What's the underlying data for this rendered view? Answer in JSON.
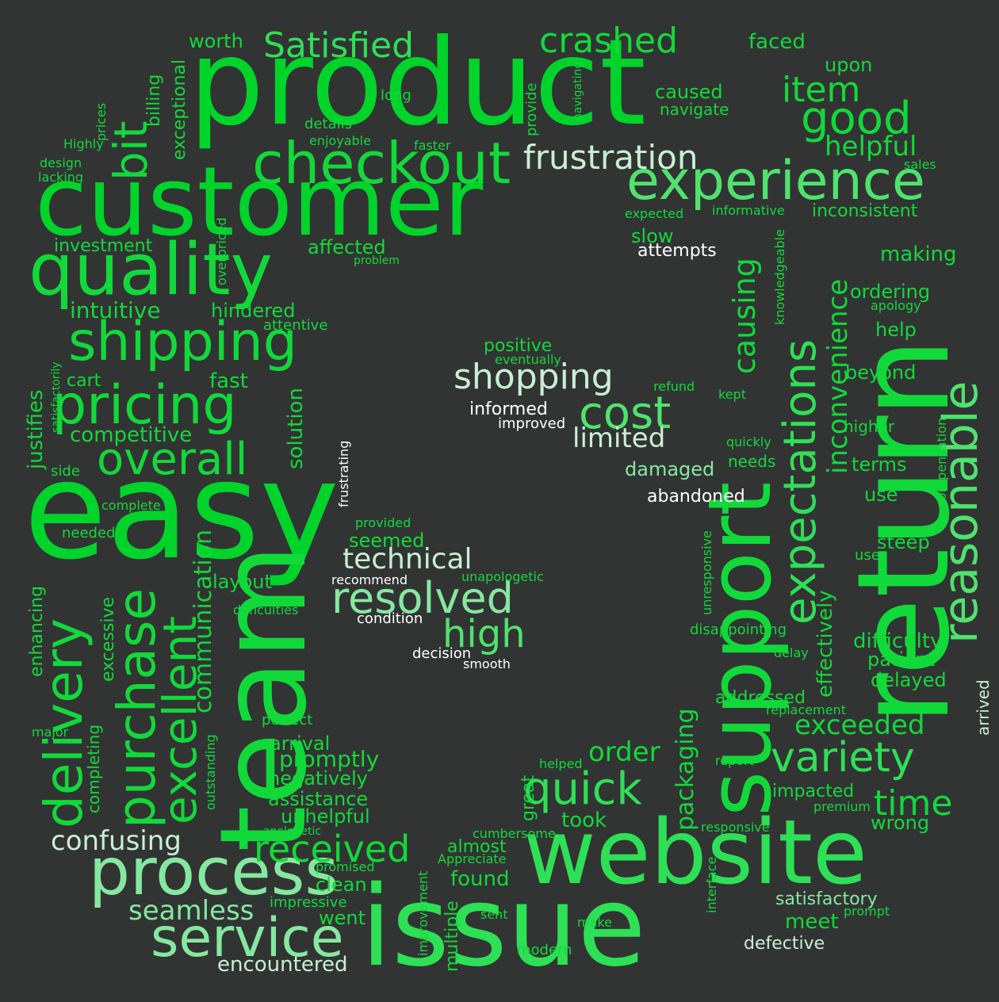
{
  "palette": {
    "background": "#323434",
    "greens": [
      "#00d42b",
      "#12d93a",
      "#2ee055",
      "#4fe36e",
      "#86e8a0",
      "#c8f0d2",
      "#ffffff"
    ]
  },
  "words": [
    {
      "text": "product",
      "color": "#00d42b"
    },
    {
      "text": "customer",
      "color": "#00d42b"
    },
    {
      "text": "easy",
      "color": "#00d42b"
    },
    {
      "text": "return",
      "color": "#12d93a"
    },
    {
      "text": "issue",
      "color": "#2ee055"
    },
    {
      "text": "website",
      "color": "#2ee055"
    },
    {
      "text": "team",
      "color": "#12d93a"
    },
    {
      "text": "support",
      "color": "#12d93a"
    },
    {
      "text": "quality",
      "color": "#12d93a"
    },
    {
      "text": "checkout",
      "color": "#12d93a"
    },
    {
      "text": "experience",
      "color": "#4fe36e"
    },
    {
      "text": "process",
      "color": "#86e8a0"
    },
    {
      "text": "service",
      "color": "#86e8a0"
    },
    {
      "text": "shipping",
      "color": "#12d93a"
    },
    {
      "text": "pricing",
      "color": "#12d93a"
    },
    {
      "text": "delivery",
      "color": "#12d93a"
    },
    {
      "text": "purchase",
      "color": "#12d93a"
    },
    {
      "text": "excellent",
      "color": "#12d93a"
    },
    {
      "text": "reasonable",
      "color": "#4fe36e"
    },
    {
      "text": "expectations",
      "color": "#2ee055"
    },
    {
      "text": "overall",
      "color": "#12d93a"
    },
    {
      "text": "crashed",
      "color": "#12d93a"
    },
    {
      "text": "good",
      "color": "#12d93a"
    },
    {
      "text": "bit",
      "color": "#12d93a"
    },
    {
      "text": "Satisfied",
      "color": "#2ee055"
    },
    {
      "text": "frustration",
      "color": "#c8f0d2"
    },
    {
      "text": "item",
      "color": "#12d93a"
    },
    {
      "text": "variety",
      "color": "#2ee055"
    },
    {
      "text": "quick",
      "color": "#2ee055"
    },
    {
      "text": "cost",
      "color": "#4fe36e"
    },
    {
      "text": "shopping",
      "color": "#c8f0d2"
    },
    {
      "text": "resolved",
      "color": "#86e8a0"
    },
    {
      "text": "high",
      "color": "#4fe36e"
    },
    {
      "text": "received",
      "color": "#12d93a"
    },
    {
      "text": "causing",
      "color": "#12d93a"
    },
    {
      "text": "inconvenience",
      "color": "#12d93a"
    },
    {
      "text": "time",
      "color": "#12d93a"
    },
    {
      "text": "technical",
      "color": "#c8f0d2"
    },
    {
      "text": "limited",
      "color": "#c8f0d2"
    },
    {
      "text": "confusing",
      "color": "#c8f0d2"
    },
    {
      "text": "communication",
      "color": "#12d93a"
    },
    {
      "text": "packaging",
      "color": "#12d93a"
    },
    {
      "text": "exceeded",
      "color": "#12d93a"
    },
    {
      "text": "helpful",
      "color": "#12d93a"
    },
    {
      "text": "order",
      "color": "#12d93a"
    },
    {
      "text": "seamless",
      "color": "#86e8a0"
    },
    {
      "text": "encountered",
      "color": "#c8f0d2"
    },
    {
      "text": "intuitive",
      "color": "#12d93a"
    },
    {
      "text": "competitive",
      "color": "#12d93a"
    },
    {
      "text": "solution",
      "color": "#12d93a"
    },
    {
      "text": "effectively",
      "color": "#12d93a"
    },
    {
      "text": "justifies",
      "color": "#12d93a"
    },
    {
      "text": "enhancing",
      "color": "#12d93a"
    },
    {
      "text": "excessive",
      "color": "#12d93a"
    },
    {
      "text": "completing",
      "color": "#12d93a"
    },
    {
      "text": "exceptional",
      "color": "#12d93a"
    },
    {
      "text": "billing",
      "color": "#12d93a"
    },
    {
      "text": "worth",
      "color": "#12d93a"
    },
    {
      "text": "faced",
      "color": "#12d93a"
    },
    {
      "text": "upon",
      "color": "#12d93a"
    },
    {
      "text": "caused",
      "color": "#12d93a"
    },
    {
      "text": "navigate",
      "color": "#12d93a"
    },
    {
      "text": "investment",
      "color": "#12d93a"
    },
    {
      "text": "affected",
      "color": "#12d93a"
    },
    {
      "text": "hindered",
      "color": "#12d93a"
    },
    {
      "text": "attentive",
      "color": "#12d93a"
    },
    {
      "text": "cart",
      "color": "#12d93a"
    },
    {
      "text": "fast",
      "color": "#12d93a"
    },
    {
      "text": "inconsistent",
      "color": "#12d93a"
    },
    {
      "text": "making",
      "color": "#12d93a"
    },
    {
      "text": "ordering",
      "color": "#12d93a"
    },
    {
      "text": "help",
      "color": "#12d93a"
    },
    {
      "text": "beyond",
      "color": "#12d93a"
    },
    {
      "text": "higher",
      "color": "#12d93a"
    },
    {
      "text": "terms",
      "color": "#12d93a"
    },
    {
      "text": "use",
      "color": "#12d93a"
    },
    {
      "text": "steep",
      "color": "#12d93a"
    },
    {
      "text": "user",
      "color": "#12d93a"
    },
    {
      "text": "difficulty",
      "color": "#12d93a"
    },
    {
      "text": "patient",
      "color": "#12d93a"
    },
    {
      "text": "delayed",
      "color": "#12d93a"
    },
    {
      "text": "arrived",
      "color": "#c8f0d2"
    },
    {
      "text": "slow",
      "color": "#12d93a"
    },
    {
      "text": "attempts",
      "color": "#ffffff"
    },
    {
      "text": "damaged",
      "color": "#86e8a0"
    },
    {
      "text": "abandoned",
      "color": "#ffffff"
    },
    {
      "text": "informed",
      "color": "#ffffff"
    },
    {
      "text": "improved",
      "color": "#ffffff"
    },
    {
      "text": "positive",
      "color": "#12d93a"
    },
    {
      "text": "eventually",
      "color": "#12d93a"
    },
    {
      "text": "condition",
      "color": "#ffffff"
    },
    {
      "text": "decision",
      "color": "#ffffff"
    },
    {
      "text": "smooth",
      "color": "#ffffff"
    },
    {
      "text": "recommend",
      "color": "#ffffff"
    },
    {
      "text": "unapologetic",
      "color": "#12d93a"
    },
    {
      "text": "seemed",
      "color": "#12d93a"
    },
    {
      "text": "provided",
      "color": "#12d93a"
    },
    {
      "text": "layout",
      "color": "#12d93a"
    },
    {
      "text": "difficulties",
      "color": "#12d93a"
    },
    {
      "text": "frustrating",
      "color": "#ffffff"
    },
    {
      "text": "satisfactorily",
      "color": "#12d93a"
    },
    {
      "text": "side",
      "color": "#12d93a"
    },
    {
      "text": "complete",
      "color": "#12d93a"
    },
    {
      "text": "needed",
      "color": "#12d93a"
    },
    {
      "text": "major",
      "color": "#12d93a"
    },
    {
      "text": "perfect",
      "color": "#12d93a"
    },
    {
      "text": "arrival",
      "color": "#12d93a"
    },
    {
      "text": "promptly",
      "color": "#12d93a"
    },
    {
      "text": "negatively",
      "color": "#12d93a"
    },
    {
      "text": "assistance",
      "color": "#12d93a"
    },
    {
      "text": "unhelpful",
      "color": "#12d93a"
    },
    {
      "text": "apologetic",
      "color": "#12d93a"
    },
    {
      "text": "outstanding",
      "color": "#12d93a"
    },
    {
      "text": "almost",
      "color": "#12d93a"
    },
    {
      "text": "found",
      "color": "#12d93a"
    },
    {
      "text": "Appreciate",
      "color": "#12d93a"
    },
    {
      "text": "promised",
      "color": "#12d93a"
    },
    {
      "text": "clean",
      "color": "#12d93a"
    },
    {
      "text": "impressive",
      "color": "#12d93a"
    },
    {
      "text": "went",
      "color": "#12d93a"
    },
    {
      "text": "cumbersome",
      "color": "#12d93a"
    },
    {
      "text": "took",
      "color": "#12d93a"
    },
    {
      "text": "great",
      "color": "#12d93a"
    },
    {
      "text": "helped",
      "color": "#12d93a"
    },
    {
      "text": "multiple",
      "color": "#12d93a"
    },
    {
      "text": "improvement",
      "color": "#12d93a"
    },
    {
      "text": "sent",
      "color": "#12d93a"
    },
    {
      "text": "make",
      "color": "#12d93a"
    },
    {
      "text": "modern",
      "color": "#12d93a"
    },
    {
      "text": "defective",
      "color": "#c8f0d2"
    },
    {
      "text": "meet",
      "color": "#12d93a"
    },
    {
      "text": "satisfactory",
      "color": "#86e8a0"
    },
    {
      "text": "prompt",
      "color": "#12d93a"
    },
    {
      "text": "interface",
      "color": "#12d93a"
    },
    {
      "text": "responsive",
      "color": "#12d93a"
    },
    {
      "text": "premium",
      "color": "#12d93a"
    },
    {
      "text": "wrong",
      "color": "#12d93a"
    },
    {
      "text": "impacted",
      "color": "#12d93a"
    },
    {
      "text": "report",
      "color": "#12d93a"
    },
    {
      "text": "replacement",
      "color": "#12d93a"
    },
    {
      "text": "addressed",
      "color": "#12d93a"
    },
    {
      "text": "delay",
      "color": "#12d93a"
    },
    {
      "text": "disappointing",
      "color": "#12d93a"
    },
    {
      "text": "unresponsive",
      "color": "#12d93a"
    },
    {
      "text": "refund",
      "color": "#12d93a"
    },
    {
      "text": "kept",
      "color": "#12d93a"
    },
    {
      "text": "quickly",
      "color": "#12d93a"
    },
    {
      "text": "needs",
      "color": "#12d93a"
    },
    {
      "text": "compensation",
      "color": "#12d93a"
    },
    {
      "text": "knowledgeable",
      "color": "#12d93a"
    },
    {
      "text": "apology",
      "color": "#12d93a"
    },
    {
      "text": "informative",
      "color": "#12d93a"
    },
    {
      "text": "expected",
      "color": "#12d93a"
    },
    {
      "text": "sales",
      "color": "#12d93a"
    },
    {
      "text": "long",
      "color": "#12d93a"
    },
    {
      "text": "details",
      "color": "#12d93a"
    },
    {
      "text": "enjoyable",
      "color": "#12d93a"
    },
    {
      "text": "faster",
      "color": "#12d93a"
    },
    {
      "text": "provide",
      "color": "#12d93a"
    },
    {
      "text": "navigating",
      "color": "#12d93a"
    },
    {
      "text": "prices",
      "color": "#12d93a"
    },
    {
      "text": "Highly",
      "color": "#12d93a"
    },
    {
      "text": "design",
      "color": "#12d93a"
    },
    {
      "text": "lacking",
      "color": "#12d93a"
    },
    {
      "text": "overpriced",
      "color": "#12d93a"
    },
    {
      "text": "problem",
      "color": "#12d93a"
    }
  ]
}
